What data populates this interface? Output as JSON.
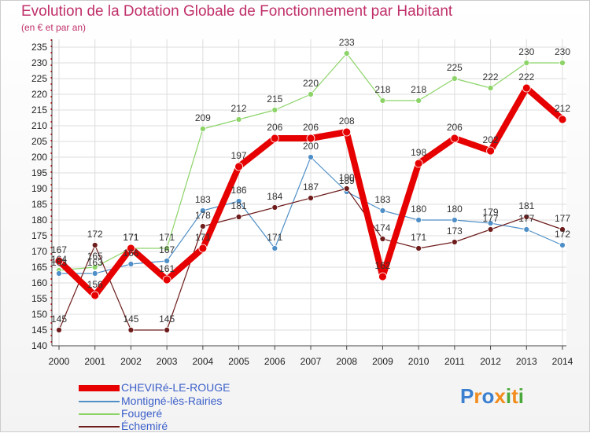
{
  "title": "Evolution de la Dotation Globale de Fonctionnement par Habitant",
  "subtitle": "(en € et par an)",
  "logo": {
    "text": "Proxiti",
    "letters": [
      "P",
      "r",
      "o",
      "x",
      "i",
      "t",
      "i"
    ],
    "colors": [
      "#3a7fd0",
      "#f28c1c",
      "#3a7fd0",
      "#f28c1c",
      "#4aa83a",
      "#f28c1c",
      "#4aa83a"
    ]
  },
  "chart_data": {
    "type": "line",
    "x": [
      2000,
      2001,
      2002,
      2003,
      2004,
      2005,
      2006,
      2007,
      2008,
      2009,
      2010,
      2011,
      2012,
      2013,
      2014
    ],
    "ylim": [
      140,
      235
    ],
    "yticks": [
      140,
      145,
      150,
      155,
      160,
      165,
      170,
      175,
      180,
      185,
      190,
      195,
      200,
      205,
      210,
      215,
      220,
      225,
      230,
      235
    ],
    "grid": true,
    "legend_position": "bottom-left",
    "series": [
      {
        "name": "Fougeré",
        "color": "#8cd468",
        "values": [
          164,
          165,
          171,
          171,
          209,
          212,
          215,
          220,
          233,
          218,
          218,
          225,
          222,
          230,
          230
        ]
      },
      {
        "name": "Montigné-lès-Rairies",
        "color": "#4f8fc7",
        "values": [
          163,
          163,
          166,
          167,
          183,
          186,
          171,
          200,
          189,
          183,
          180,
          180,
          179,
          177,
          172
        ]
      },
      {
        "name": "Échemiré",
        "color": "#6e1c1c",
        "values": [
          145,
          172,
          145,
          145,
          178,
          181,
          184,
          187,
          190,
          174,
          171,
          173,
          177,
          181,
          177
        ]
      },
      {
        "name": "CHEVIRé-LE-ROUGE",
        "color": "#e60000",
        "values": [
          167,
          156,
          171,
          161,
          171,
          197,
          206,
          206,
          208,
          162,
          198,
          206,
          202,
          222,
          212
        ]
      }
    ]
  }
}
